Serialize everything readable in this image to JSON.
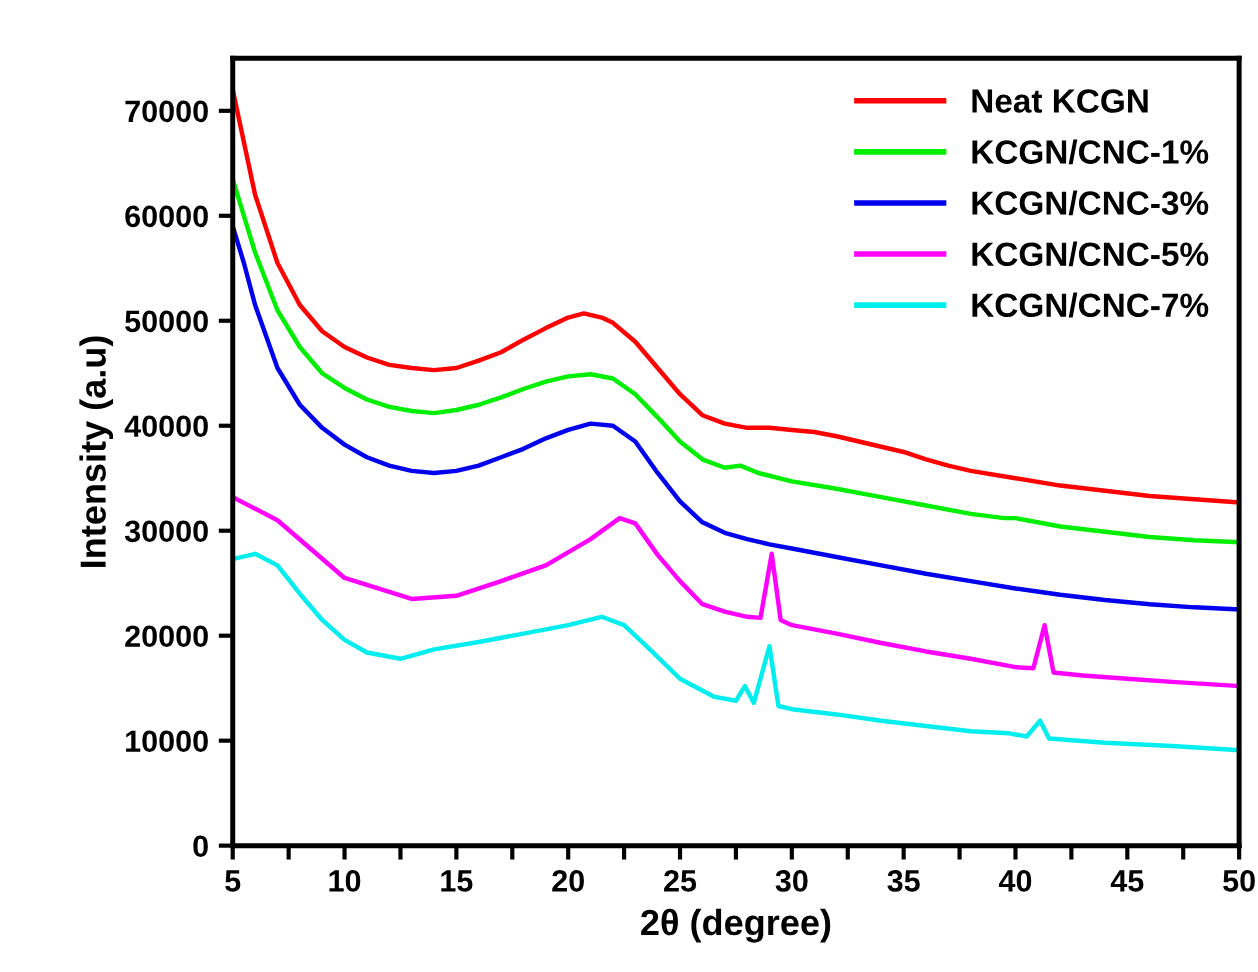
{
  "chart_data": {
    "type": "line",
    "xlabel": "2θ (degree)",
    "ylabel": "Intensity (a.u)",
    "xlim": [
      5,
      50
    ],
    "ylim": [
      0,
      75000
    ],
    "xticks": [
      5,
      {
        "value": 7.5,
        "label": null
      },
      10,
      {
        "value": 12.5,
        "label": null
      },
      15,
      {
        "value": 17.5,
        "label": null
      },
      20,
      {
        "value": 22.5,
        "label": null
      },
      25,
      {
        "value": 27.5,
        "label": null
      },
      30,
      {
        "value": 32.5,
        "label": null
      },
      35,
      {
        "value": 37.5,
        "label": null
      },
      40,
      {
        "value": 42.5,
        "label": null
      },
      45,
      {
        "value": 47.5,
        "label": null
      },
      50
    ],
    "yticks": [
      0,
      10000,
      20000,
      30000,
      40000,
      50000,
      60000,
      70000
    ],
    "legend": "top right",
    "grid": false,
    "marker": "none",
    "line_style": "solid",
    "series": [
      {
        "name": "Neat KCGN",
        "color": "#ff0000",
        "x": [
          5,
          5.5,
          6,
          7,
          8,
          9,
          10,
          11,
          12,
          13,
          14,
          15,
          16,
          17,
          18,
          19,
          20,
          20.7,
          21.5,
          22,
          23,
          24,
          25,
          26,
          27,
          28,
          29,
          30,
          31,
          32,
          33,
          34,
          35,
          36,
          37,
          38,
          40,
          42,
          44,
          46,
          48,
          50
        ],
        "values": [
          72000,
          67000,
          62000,
          55500,
          51500,
          49000,
          47500,
          46500,
          45800,
          45500,
          45300,
          45500,
          46200,
          47000,
          48200,
          49300,
          50300,
          50700,
          50300,
          49800,
          48000,
          45500,
          43000,
          41000,
          40200,
          39800,
          39800,
          39600,
          39400,
          39000,
          38500,
          38000,
          37500,
          36800,
          36200,
          35700,
          35000,
          34300,
          33800,
          33300,
          33000,
          32700
        ]
      },
      {
        "name": "KCGN/CNC-1%",
        "color": "#00ee00",
        "x": [
          5,
          5.5,
          6,
          7,
          8,
          9,
          10,
          11,
          12,
          13,
          14,
          15,
          16,
          17,
          18,
          19,
          20,
          21,
          22,
          23,
          24,
          25,
          26,
          27,
          27.7,
          28.5,
          30,
          32,
          34,
          36,
          38,
          39.5,
          40,
          42,
          44,
          46,
          48,
          50
        ],
        "values": [
          63500,
          60000,
          56500,
          51000,
          47500,
          45000,
          43600,
          42500,
          41800,
          41400,
          41200,
          41500,
          42000,
          42700,
          43500,
          44200,
          44700,
          44900,
          44500,
          43000,
          40800,
          38500,
          36800,
          36000,
          36200,
          35500,
          34700,
          34000,
          33200,
          32400,
          31600,
          31200,
          31200,
          30400,
          29900,
          29400,
          29100,
          28900
        ]
      },
      {
        "name": "KCGN/CNC-3%",
        "color": "#0000ee",
        "x": [
          5,
          5.5,
          6,
          7,
          8,
          9,
          10,
          11,
          12,
          13,
          14,
          15,
          16,
          17,
          18,
          19,
          20,
          21,
          22,
          23,
          24,
          25,
          26,
          27,
          28,
          29,
          30,
          32,
          34,
          36,
          38,
          40,
          42,
          44,
          46,
          48,
          50
        ],
        "values": [
          59000,
          55500,
          51500,
          45500,
          42000,
          39800,
          38200,
          37000,
          36200,
          35700,
          35500,
          35700,
          36200,
          37000,
          37800,
          38800,
          39600,
          40200,
          40000,
          38500,
          35500,
          32800,
          30800,
          29800,
          29200,
          28700,
          28300,
          27500,
          26700,
          25900,
          25200,
          24500,
          23900,
          23400,
          23000,
          22700,
          22500
        ]
      },
      {
        "name": "KCGN/CNC-5%",
        "color": "#ff00ff",
        "x": [
          5,
          7,
          10,
          13,
          15,
          17,
          19,
          21,
          22.3,
          23,
          24,
          25,
          26,
          27,
          28,
          28.6,
          29.1,
          29.5,
          30,
          32,
          34,
          36,
          38,
          40,
          40.8,
          41.3,
          41.7,
          43,
          45,
          47,
          50
        ],
        "values": [
          33200,
          31000,
          25500,
          23500,
          23800,
          25200,
          26700,
          29200,
          31200,
          30700,
          27700,
          25200,
          23000,
          22300,
          21800,
          21700,
          27800,
          21500,
          21000,
          20200,
          19300,
          18500,
          17800,
          17000,
          16900,
          21000,
          16500,
          16200,
          15900,
          15600,
          15200
        ]
      },
      {
        "name": "KCGN/CNC-7%",
        "color": "#00eeee",
        "x": [
          5,
          6,
          7,
          8,
          9,
          10,
          11,
          12.5,
          14,
          16,
          18,
          20,
          21.5,
          22.5,
          23.5,
          25,
          26.5,
          27.5,
          27.9,
          28.3,
          29,
          29.4,
          30,
          32,
          34,
          36,
          38,
          39.7,
          40.5,
          41.1,
          41.5,
          44,
          47,
          50
        ],
        "values": [
          27300,
          27800,
          26700,
          24000,
          21500,
          19600,
          18400,
          17800,
          18700,
          19400,
          20200,
          21000,
          21800,
          21000,
          19000,
          15900,
          14200,
          13800,
          15200,
          13600,
          19000,
          13300,
          13000,
          12500,
          11900,
          11400,
          10900,
          10700,
          10400,
          11900,
          10200,
          9800,
          9500,
          9100
        ]
      }
    ]
  }
}
